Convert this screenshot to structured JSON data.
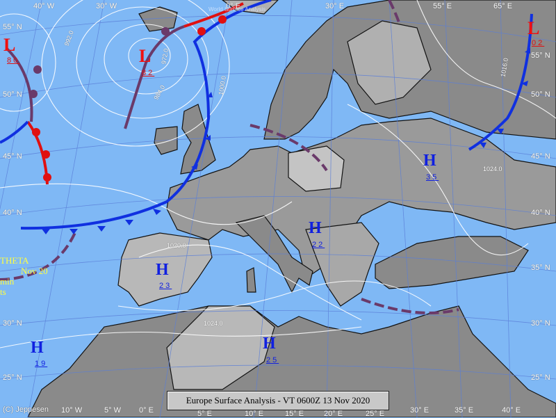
{
  "caption": "Europe Surface Analysis - VT 0600Z 13 Nov 2020",
  "watermark": "World Surface Analysis",
  "copyright": "(C) Jeppesen",
  "side_text": [
    "THETA",
    "Nov 20",
    "min",
    "ts"
  ],
  "colors": {
    "sea": "#7fb8f5",
    "land_light": "#bdbdbd",
    "land_dark": "#8a8a8a",
    "low": "#f01010",
    "high": "#1020e0",
    "occluded": "#6a3a6a",
    "cold_front": "#1030e0",
    "warm_front": "#e01010"
  },
  "lat_labels_left": [
    "55° N",
    "50° N",
    "45° N",
    "40° N",
    "30° N",
    "25° N"
  ],
  "lat_labels_right": [
    "55° N",
    "50° N",
    "45° N",
    "40° N",
    "35° N",
    "30° N",
    "25° N"
  ],
  "lon_labels_top": [
    "40° W",
    "30° W",
    "0° E",
    "30° E",
    "55° E",
    "65° E"
  ],
  "lon_labels_bottom": [
    "10° W",
    "5° W",
    "0° E",
    "5° E",
    "10° E",
    "15° E",
    "20° E",
    "25° E",
    "30° E",
    "35° E",
    "40° E"
  ],
  "isobar_labels": [
    "992.0",
    "972.0",
    "984.0",
    "1000.0",
    "1020.0",
    "1024.0",
    "1016.0",
    "1024.0"
  ],
  "pressure_centers": [
    {
      "type": "L",
      "value": "80"
    },
    {
      "type": "L",
      "value": "82"
    },
    {
      "type": "L",
      "value": "02"
    },
    {
      "type": "H",
      "value": "35"
    },
    {
      "type": "H",
      "value": "22"
    },
    {
      "type": "H",
      "value": "23"
    },
    {
      "type": "H",
      "value": "25"
    },
    {
      "type": "H",
      "value": "19"
    }
  ]
}
